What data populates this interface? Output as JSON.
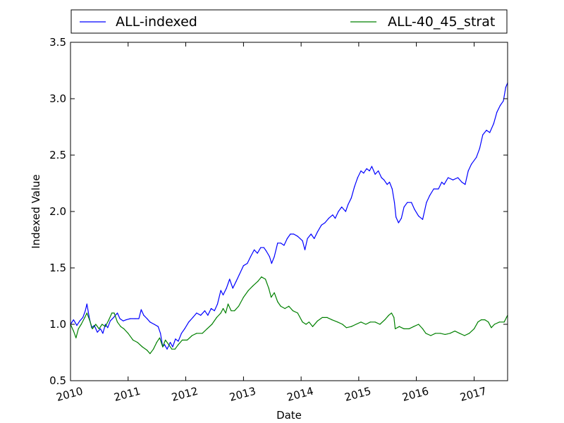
{
  "chart_data": {
    "type": "line",
    "title": "",
    "xlabel": "Date",
    "ylabel": "Indexed Value",
    "xlim": [
      "2010-01-01",
      "2017-08-01"
    ],
    "ylim": [
      0.5,
      3.5
    ],
    "x_ticks": [
      "2010",
      "2011",
      "2012",
      "2013",
      "2014",
      "2015",
      "2016",
      "2017"
    ],
    "y_ticks": [
      "0.5",
      "1.0",
      "1.5",
      "2.0",
      "2.5",
      "3.0",
      "3.5"
    ],
    "grid": false,
    "legend_position": "top",
    "series": [
      {
        "name": "ALL-indexed",
        "color": "#0000ff",
        "points": [
          [
            "2010-01-01",
            1.0
          ],
          [
            "2010-01-20",
            1.04
          ],
          [
            "2010-02-10",
            0.99
          ],
          [
            "2010-03-01",
            1.03
          ],
          [
            "2010-03-20",
            1.06
          ],
          [
            "2010-04-05",
            1.12
          ],
          [
            "2010-04-15",
            1.18
          ],
          [
            "2010-05-01",
            1.05
          ],
          [
            "2010-05-15",
            0.97
          ],
          [
            "2010-06-01",
            0.99
          ],
          [
            "2010-06-20",
            0.93
          ],
          [
            "2010-07-10",
            0.96
          ],
          [
            "2010-07-25",
            0.92
          ],
          [
            "2010-08-10",
            1.0
          ],
          [
            "2010-08-25",
            0.97
          ],
          [
            "2010-09-10",
            1.03
          ],
          [
            "2010-10-01",
            1.06
          ],
          [
            "2010-10-25",
            1.1
          ],
          [
            "2010-11-10",
            1.05
          ],
          [
            "2010-12-01",
            1.03
          ],
          [
            "2010-12-20",
            1.04
          ],
          [
            "2011-01-15",
            1.05
          ],
          [
            "2011-02-15",
            1.05
          ],
          [
            "2011-03-10",
            1.05
          ],
          [
            "2011-03-25",
            1.13
          ],
          [
            "2011-04-10",
            1.08
          ],
          [
            "2011-05-01",
            1.05
          ],
          [
            "2011-05-20",
            1.02
          ],
          [
            "2011-06-15",
            1.0
          ],
          [
            "2011-07-10",
            0.98
          ],
          [
            "2011-07-25",
            0.92
          ],
          [
            "2011-08-08",
            0.8
          ],
          [
            "2011-08-20",
            0.82
          ],
          [
            "2011-09-05",
            0.78
          ],
          [
            "2011-09-25",
            0.84
          ],
          [
            "2011-10-10",
            0.8
          ],
          [
            "2011-10-28",
            0.87
          ],
          [
            "2011-11-15",
            0.85
          ],
          [
            "2011-12-05",
            0.92
          ],
          [
            "2011-12-25",
            0.96
          ],
          [
            "2012-01-20",
            1.02
          ],
          [
            "2012-02-15",
            1.06
          ],
          [
            "2012-03-10",
            1.1
          ],
          [
            "2012-04-05",
            1.08
          ],
          [
            "2012-05-01",
            1.12
          ],
          [
            "2012-05-20",
            1.08
          ],
          [
            "2012-06-10",
            1.14
          ],
          [
            "2012-07-01",
            1.12
          ],
          [
            "2012-07-20",
            1.18
          ],
          [
            "2012-08-10",
            1.3
          ],
          [
            "2012-08-25",
            1.26
          ],
          [
            "2012-09-15",
            1.32
          ],
          [
            "2012-10-05",
            1.4
          ],
          [
            "2012-10-25",
            1.32
          ],
          [
            "2012-11-15",
            1.38
          ],
          [
            "2012-12-05",
            1.44
          ],
          [
            "2013-01-01",
            1.52
          ],
          [
            "2013-01-25",
            1.54
          ],
          [
            "2013-02-15",
            1.6
          ],
          [
            "2013-03-10",
            1.66
          ],
          [
            "2013-03-30",
            1.63
          ],
          [
            "2013-04-20",
            1.68
          ],
          [
            "2013-05-10",
            1.68
          ],
          [
            "2013-05-25",
            1.65
          ],
          [
            "2013-06-15",
            1.6
          ],
          [
            "2013-06-28",
            1.54
          ],
          [
            "2013-07-15",
            1.6
          ],
          [
            "2013-08-05",
            1.72
          ],
          [
            "2013-08-25",
            1.72
          ],
          [
            "2013-09-15",
            1.7
          ],
          [
            "2013-10-05",
            1.76
          ],
          [
            "2013-10-25",
            1.8
          ],
          [
            "2013-11-15",
            1.8
          ],
          [
            "2013-12-10",
            1.78
          ],
          [
            "2014-01-10",
            1.74
          ],
          [
            "2014-01-25",
            1.66
          ],
          [
            "2014-02-10",
            1.76
          ],
          [
            "2014-03-05",
            1.8
          ],
          [
            "2014-03-25",
            1.76
          ],
          [
            "2014-04-15",
            1.82
          ],
          [
            "2014-05-10",
            1.88
          ],
          [
            "2014-06-01",
            1.9
          ],
          [
            "2014-06-25",
            1.94
          ],
          [
            "2014-07-20",
            1.97
          ],
          [
            "2014-08-05",
            1.94
          ],
          [
            "2014-08-25",
            2.0
          ],
          [
            "2014-09-15",
            2.04
          ],
          [
            "2014-10-10",
            2.0
          ],
          [
            "2014-10-25",
            2.06
          ],
          [
            "2014-11-15",
            2.12
          ],
          [
            "2014-12-05",
            2.22
          ],
          [
            "2014-12-25",
            2.3
          ],
          [
            "2015-01-15",
            2.36
          ],
          [
            "2015-02-01",
            2.34
          ],
          [
            "2015-02-20",
            2.38
          ],
          [
            "2015-03-10",
            2.36
          ],
          [
            "2015-03-25",
            2.4
          ],
          [
            "2015-04-15",
            2.33
          ],
          [
            "2015-05-05",
            2.36
          ],
          [
            "2015-05-25",
            2.3
          ],
          [
            "2015-06-10",
            2.28
          ],
          [
            "2015-06-30",
            2.24
          ],
          [
            "2015-07-15",
            2.26
          ],
          [
            "2015-08-01",
            2.2
          ],
          [
            "2015-08-15",
            2.08
          ],
          [
            "2015-08-25",
            1.95
          ],
          [
            "2015-09-10",
            1.9
          ],
          [
            "2015-09-28",
            1.94
          ],
          [
            "2015-10-15",
            2.04
          ],
          [
            "2015-11-05",
            2.08
          ],
          [
            "2015-12-01",
            2.08
          ],
          [
            "2015-12-20",
            2.02
          ],
          [
            "2016-01-15",
            1.96
          ],
          [
            "2016-02-10",
            1.93
          ],
          [
            "2016-03-05",
            2.08
          ],
          [
            "2016-03-25",
            2.14
          ],
          [
            "2016-04-20",
            2.2
          ],
          [
            "2016-05-20",
            2.2
          ],
          [
            "2016-06-10",
            2.26
          ],
          [
            "2016-06-25",
            2.24
          ],
          [
            "2016-07-20",
            2.3
          ],
          [
            "2016-08-20",
            2.28
          ],
          [
            "2016-09-20",
            2.3
          ],
          [
            "2016-10-15",
            2.26
          ],
          [
            "2016-11-05",
            2.24
          ],
          [
            "2016-11-25",
            2.36
          ],
          [
            "2016-12-15",
            2.42
          ],
          [
            "2017-01-15",
            2.48
          ],
          [
            "2017-02-05",
            2.56
          ],
          [
            "2017-02-25",
            2.68
          ],
          [
            "2017-03-20",
            2.72
          ],
          [
            "2017-04-10",
            2.7
          ],
          [
            "2017-05-05",
            2.78
          ],
          [
            "2017-05-25",
            2.88
          ],
          [
            "2017-06-15",
            2.94
          ],
          [
            "2017-07-05",
            2.98
          ],
          [
            "2017-07-20",
            3.1
          ],
          [
            "2017-08-01",
            3.14
          ]
        ]
      },
      {
        "name": "ALL-40_45_strat",
        "color": "#008000",
        "points": [
          [
            "2010-01-01",
            1.0
          ],
          [
            "2010-01-20",
            0.94
          ],
          [
            "2010-02-05",
            0.88
          ],
          [
            "2010-02-20",
            0.96
          ],
          [
            "2010-03-10",
            1.0
          ],
          [
            "2010-04-01",
            1.06
          ],
          [
            "2010-04-15",
            1.1
          ],
          [
            "2010-05-01",
            1.04
          ],
          [
            "2010-05-20",
            0.96
          ],
          [
            "2010-06-10",
            1.0
          ],
          [
            "2010-07-01",
            0.96
          ],
          [
            "2010-07-20",
            1.0
          ],
          [
            "2010-08-10",
            0.98
          ],
          [
            "2010-09-01",
            1.04
          ],
          [
            "2010-09-20",
            1.1
          ],
          [
            "2010-10-05",
            1.1
          ],
          [
            "2010-10-25",
            1.02
          ],
          [
            "2010-11-15",
            0.98
          ],
          [
            "2010-12-05",
            0.96
          ],
          [
            "2011-01-01",
            0.92
          ],
          [
            "2011-02-01",
            0.86
          ],
          [
            "2011-03-01",
            0.84
          ],
          [
            "2011-04-01",
            0.8
          ],
          [
            "2011-05-01",
            0.77
          ],
          [
            "2011-05-20",
            0.74
          ],
          [
            "2011-06-10",
            0.78
          ],
          [
            "2011-07-01",
            0.84
          ],
          [
            "2011-07-20",
            0.88
          ],
          [
            "2011-08-08",
            0.8
          ],
          [
            "2011-08-25",
            0.86
          ],
          [
            "2011-09-15",
            0.82
          ],
          [
            "2011-10-05",
            0.78
          ],
          [
            "2011-10-25",
            0.78
          ],
          [
            "2011-11-15",
            0.82
          ],
          [
            "2011-12-10",
            0.86
          ],
          [
            "2012-01-10",
            0.86
          ],
          [
            "2012-02-10",
            0.9
          ],
          [
            "2012-03-10",
            0.92
          ],
          [
            "2012-04-15",
            0.92
          ],
          [
            "2012-05-15",
            0.96
          ],
          [
            "2012-06-15",
            1.0
          ],
          [
            "2012-07-15",
            1.06
          ],
          [
            "2012-08-10",
            1.1
          ],
          [
            "2012-08-25",
            1.14
          ],
          [
            "2012-09-10",
            1.1
          ],
          [
            "2012-09-25",
            1.18
          ],
          [
            "2012-10-15",
            1.12
          ],
          [
            "2012-11-05",
            1.12
          ],
          [
            "2012-12-01",
            1.16
          ],
          [
            "2013-01-01",
            1.24
          ],
          [
            "2013-02-01",
            1.3
          ],
          [
            "2013-03-01",
            1.34
          ],
          [
            "2013-04-01",
            1.38
          ],
          [
            "2013-04-25",
            1.42
          ],
          [
            "2013-05-20",
            1.4
          ],
          [
            "2013-06-10",
            1.32
          ],
          [
            "2013-06-25",
            1.24
          ],
          [
            "2013-07-15",
            1.28
          ],
          [
            "2013-08-05",
            1.2
          ],
          [
            "2013-08-25",
            1.16
          ],
          [
            "2013-09-20",
            1.14
          ],
          [
            "2013-10-15",
            1.16
          ],
          [
            "2013-11-10",
            1.12
          ],
          [
            "2013-12-10",
            1.1
          ],
          [
            "2014-01-10",
            1.02
          ],
          [
            "2014-02-01",
            1.0
          ],
          [
            "2014-02-20",
            1.02
          ],
          [
            "2014-03-15",
            0.98
          ],
          [
            "2014-04-15",
            1.03
          ],
          [
            "2014-05-15",
            1.06
          ],
          [
            "2014-06-15",
            1.06
          ],
          [
            "2014-07-15",
            1.04
          ],
          [
            "2014-08-20",
            1.02
          ],
          [
            "2014-09-20",
            1.0
          ],
          [
            "2014-10-15",
            0.97
          ],
          [
            "2014-11-15",
            0.98
          ],
          [
            "2014-12-15",
            1.0
          ],
          [
            "2015-01-15",
            1.02
          ],
          [
            "2015-02-15",
            1.0
          ],
          [
            "2015-03-15",
            1.02
          ],
          [
            "2015-04-15",
            1.02
          ],
          [
            "2015-05-15",
            1.0
          ],
          [
            "2015-06-15",
            1.04
          ],
          [
            "2015-07-10",
            1.08
          ],
          [
            "2015-07-28",
            1.1
          ],
          [
            "2015-08-12",
            1.06
          ],
          [
            "2015-08-20",
            0.96
          ],
          [
            "2015-09-15",
            0.98
          ],
          [
            "2015-10-15",
            0.96
          ],
          [
            "2015-11-15",
            0.96
          ],
          [
            "2015-12-15",
            0.98
          ],
          [
            "2016-01-15",
            1.0
          ],
          [
            "2016-02-10",
            0.96
          ],
          [
            "2016-03-01",
            0.92
          ],
          [
            "2016-04-01",
            0.9
          ],
          [
            "2016-05-01",
            0.92
          ],
          [
            "2016-06-01",
            0.92
          ],
          [
            "2016-07-01",
            0.91
          ],
          [
            "2016-08-01",
            0.92
          ],
          [
            "2016-09-01",
            0.94
          ],
          [
            "2016-10-01",
            0.92
          ],
          [
            "2016-11-01",
            0.9
          ],
          [
            "2016-12-01",
            0.92
          ],
          [
            "2017-01-01",
            0.96
          ],
          [
            "2017-01-25",
            1.02
          ],
          [
            "2017-02-15",
            1.04
          ],
          [
            "2017-03-10",
            1.04
          ],
          [
            "2017-04-01",
            1.02
          ],
          [
            "2017-04-20",
            0.97
          ],
          [
            "2017-05-10",
            1.0
          ],
          [
            "2017-06-10",
            1.02
          ],
          [
            "2017-07-10",
            1.02
          ],
          [
            "2017-07-25",
            1.06
          ],
          [
            "2017-08-01",
            1.08
          ]
        ]
      }
    ]
  }
}
